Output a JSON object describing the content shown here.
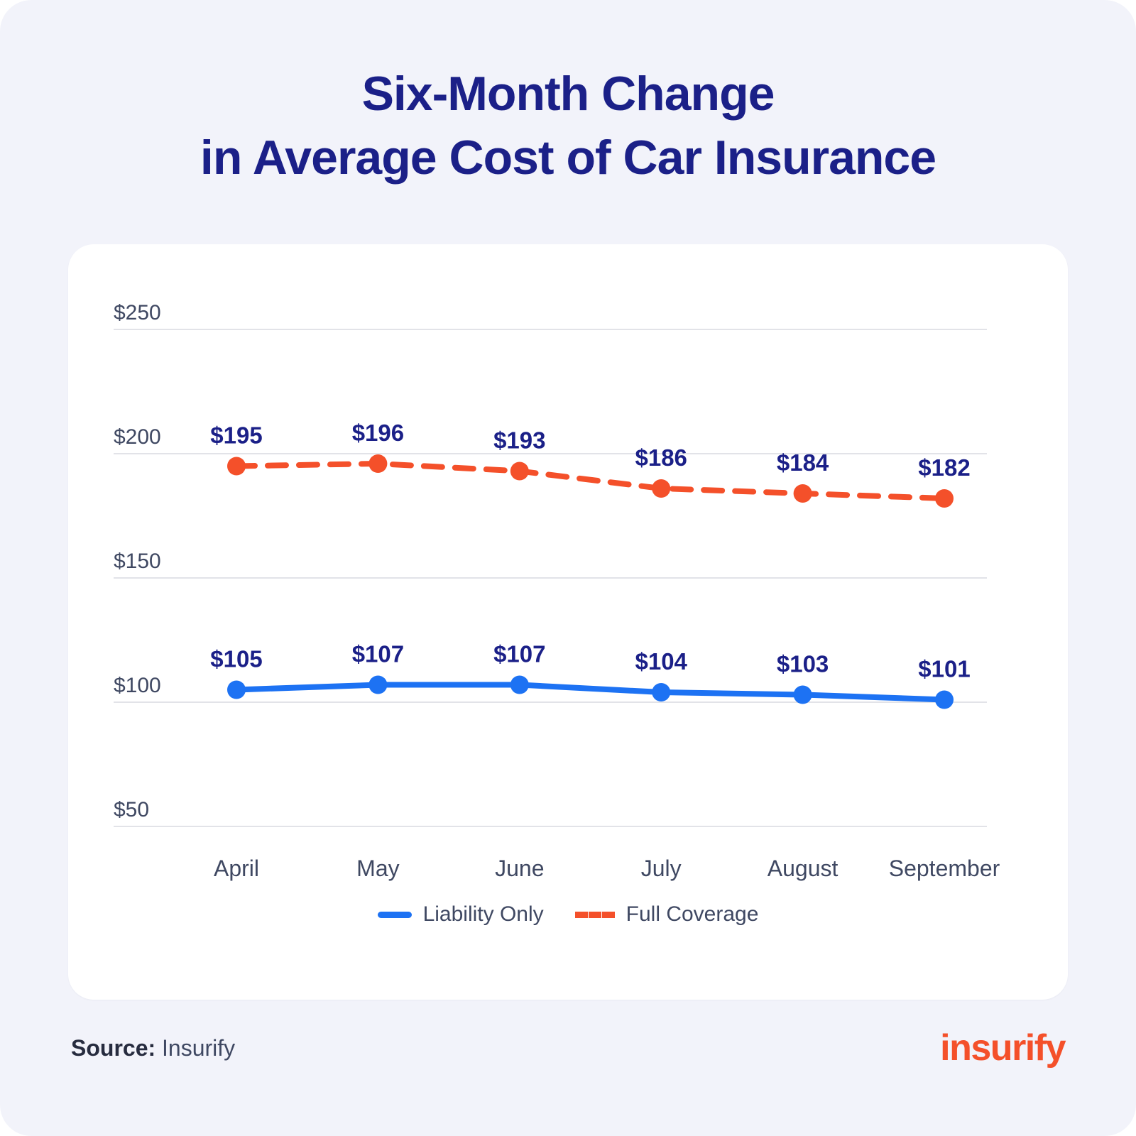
{
  "header": {
    "title_line1": "Six-Month Change",
    "title_line2": "in Average Cost of Car Insurance"
  },
  "chart_data": {
    "type": "line",
    "title": "Six-Month Change in Average Cost of Car Insurance",
    "categories": [
      "April",
      "May",
      "June",
      "July",
      "August",
      "September"
    ],
    "series": [
      {
        "name": "Liability Only",
        "values": [
          105,
          107,
          107,
          104,
          103,
          101
        ],
        "labels": [
          "$105",
          "$107",
          "$107",
          "$104",
          "$103",
          "$101"
        ],
        "color": "#1D72F3",
        "style": "solid"
      },
      {
        "name": "Full Coverage",
        "values": [
          195,
          196,
          193,
          186,
          184,
          182
        ],
        "labels": [
          "$195",
          "$196",
          "$193",
          "$186",
          "$184",
          "$182"
        ],
        "color": "#F4502A",
        "style": "dashed"
      }
    ],
    "ylim": [
      50,
      250
    ],
    "yticks": [
      250,
      200,
      150,
      100,
      50
    ],
    "ytick_labels": [
      "$250",
      "$200",
      "$150",
      "$100",
      "$50"
    ],
    "value_prefix": "$",
    "grid": true,
    "legend_position": "bottom",
    "xlabel": "",
    "ylabel": ""
  },
  "theme": {
    "title_color": "#1B2088",
    "value_label_color": "#1B2088",
    "axis_label_color": "#3F4862",
    "grid_color": "#E2E3E8",
    "background": "#F2F3FA",
    "card_background": "#FFFFFF"
  },
  "footer": {
    "source_label": "Source:",
    "source_value": "Insurify",
    "logo_text": "insurify",
    "logo_color": "#F4502A"
  }
}
